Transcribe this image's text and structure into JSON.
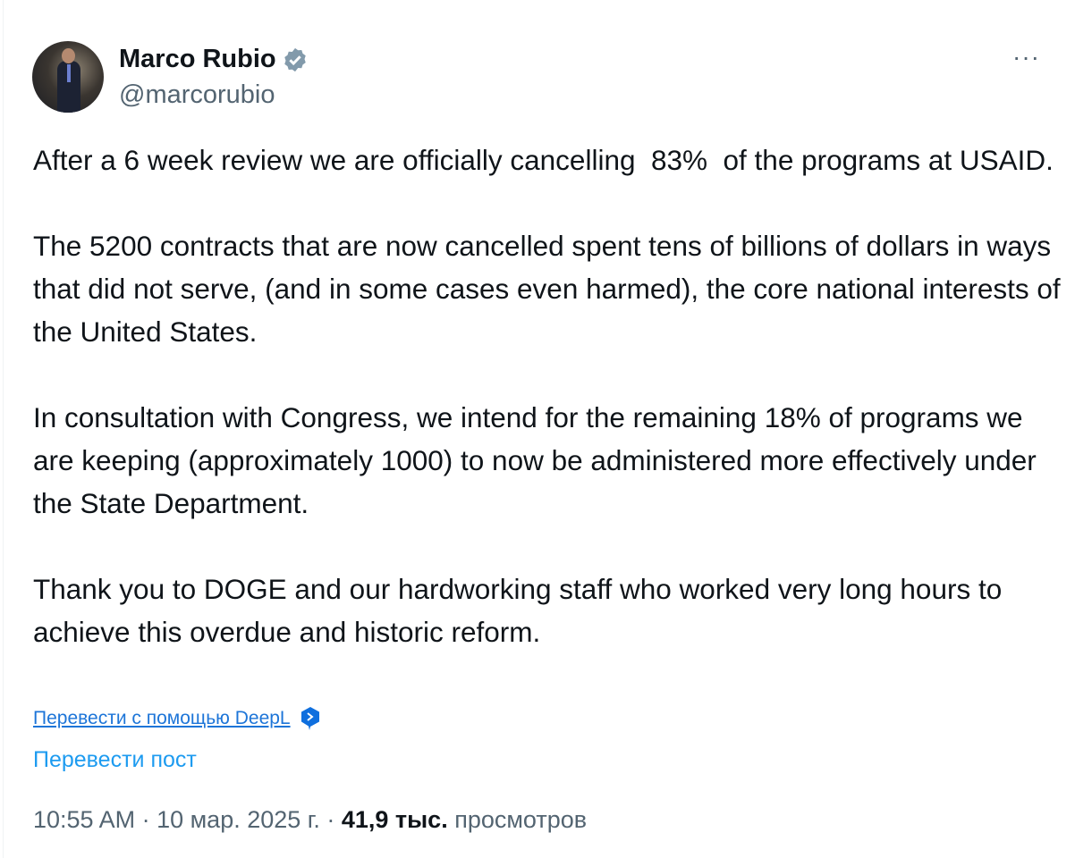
{
  "author": {
    "name": "Marco Rubio",
    "handle": "@marcorubio",
    "verified_color": "#829aab"
  },
  "menu": {
    "more_label": "···"
  },
  "post": {
    "paragraphs": [
      "After a 6 week review we are officially cancelling  83%  of the programs at USAID.",
      "The 5200 contracts that are now cancelled spent tens of billions of dollars in ways that did not serve, (and in some cases even harmed), the core national interests of the United States.",
      "In consultation with Congress, we intend for the remaining 18% of programs we are keeping (approximately 1000) to now be administered more effectively under the State Department.",
      "Thank you to DOGE and our hardworking staff who worked very long hours to achieve this overdue and historic reform."
    ]
  },
  "translate": {
    "deepl_label": "Перевести с помощью DeepL",
    "post_label": "Перевести пост"
  },
  "meta": {
    "time": "10:55 AM",
    "sep": " · ",
    "date": "10 мар. 2025 г.",
    "views_count": "41,9 тыс.",
    "views_label": "просмотров"
  }
}
